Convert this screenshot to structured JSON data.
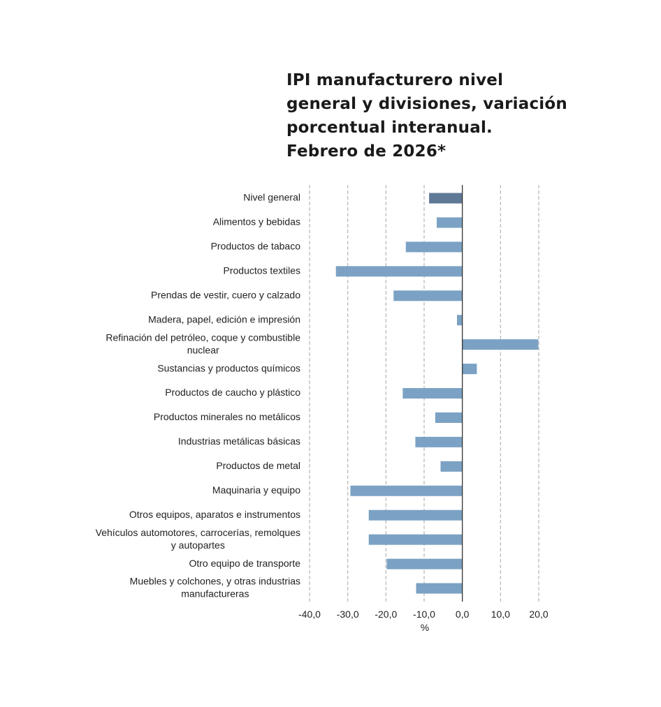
{
  "chart_data": {
    "type": "bar",
    "orientation": "horizontal",
    "title_lines": [
      "IPI manufacturero nivel",
      "general y divisiones, variación",
      "porcentual interanual.",
      "Febrero de 2026*"
    ],
    "categories": [
      [
        "Nivel general"
      ],
      [
        "Alimentos y bebidas"
      ],
      [
        "Productos de tabaco"
      ],
      [
        "Productos textiles"
      ],
      [
        "Prendas de vestir, cuero y calzado"
      ],
      [
        "Madera, papel, edición e impresión"
      ],
      [
        "Refinación del petróleo, coque y combustible",
        "nuclear"
      ],
      [
        "Sustancias y productos químicos"
      ],
      [
        "Productos de caucho y plástico"
      ],
      [
        "Productos minerales no metálicos"
      ],
      [
        "Industrias metálicas básicas"
      ],
      [
        "Productos de metal"
      ],
      [
        "Maquinaria y equipo"
      ],
      [
        "Otros equipos, aparatos e instrumentos"
      ],
      [
        "Vehículos automotores, carrocerías, remolques",
        "y autopartes"
      ],
      [
        "Otro equipo de transporte"
      ],
      [
        "Muebles y colchones, y otras industrias",
        "manufactureras"
      ]
    ],
    "values": [
      -8.7,
      -6.7,
      -14.8,
      -33.1,
      -18.0,
      -1.4,
      19.9,
      3.8,
      -15.6,
      -7.1,
      -12.3,
      -5.7,
      -29.3,
      -24.5,
      -24.5,
      -19.8,
      -12.1
    ],
    "highlight_index": 0,
    "xlim": [
      -40,
      20
    ],
    "xticks": [
      -40,
      -30,
      -20,
      -10,
      0,
      10,
      20
    ],
    "xtick_labels": [
      "-40,0",
      "-30,0",
      "-20,0",
      "-10,0",
      "0,0",
      "10,0",
      "20,0"
    ],
    "xlabel": "%",
    "grid": "vertical dashed",
    "colors": {
      "bar": "#7ba2c4",
      "highlight": "#5e7896",
      "grid": "#b5b5b5",
      "axis": "#333333"
    }
  }
}
